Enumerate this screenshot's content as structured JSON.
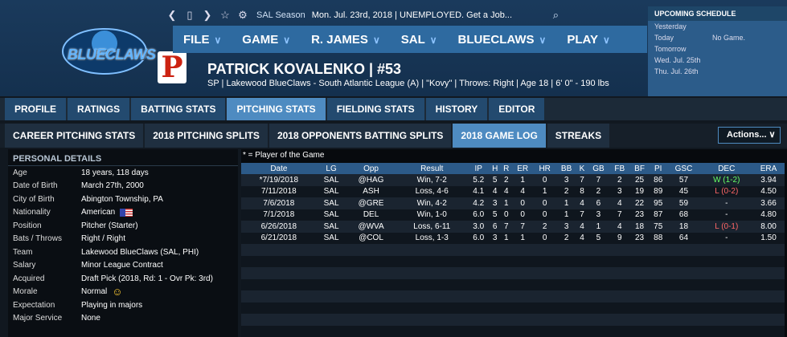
{
  "topbar": {
    "season": "SAL Season",
    "status": "Mon. Jul. 23rd, 2018  |  UNEMPLOYED. Get a Job..."
  },
  "logo": {
    "text": "BLUECLAWS",
    "phi": "P"
  },
  "nav": [
    {
      "label": "FILE"
    },
    {
      "label": "GAME"
    },
    {
      "label": "R. JAMES"
    },
    {
      "label": "SAL"
    },
    {
      "label": "BLUECLAWS"
    },
    {
      "label": "PLAY"
    }
  ],
  "player": {
    "name": "PATRICK KOVALENKO  |  #53",
    "info": "SP | Lakewood BlueClaws - South Atlantic League (A)  |  \"Kovy\"  |  Throws: Right  |  Age 18  |  6' 0\" - 190 lbs"
  },
  "schedule": {
    "title": "UPCOMING SCHEDULE",
    "rows": [
      {
        "d": "Yesterday",
        "v": ""
      },
      {
        "d": "Today",
        "v": "No Game."
      },
      {
        "d": "Tomorrow",
        "v": ""
      },
      {
        "d": "Wed. Jul. 25th",
        "v": ""
      },
      {
        "d": "Thu. Jul. 26th",
        "v": ""
      }
    ]
  },
  "tabs1": [
    "PROFILE",
    "RATINGS",
    "BATTING STATS",
    "PITCHING STATS",
    "FIELDING STATS",
    "HISTORY",
    "EDITOR"
  ],
  "tabs2": [
    "CAREER PITCHING STATS",
    "2018 PITCHING SPLITS",
    "2018 OPPONENTS BATTING SPLITS",
    "2018 GAME LOG",
    "STREAKS"
  ],
  "actions": "Actions...   ∨",
  "personal": {
    "title": "PERSONAL DETAILS",
    "rows": [
      {
        "k": "Age",
        "v": "18 years, 118 days"
      },
      {
        "k": "Date of Birth",
        "v": "March 27th, 2000"
      },
      {
        "k": "City of Birth",
        "v": "Abington Township, PA"
      },
      {
        "k": "Nationality",
        "v": "American"
      },
      {
        "k": "Position",
        "v": "Pitcher (Starter)"
      },
      {
        "k": "Bats / Throws",
        "v": "Right / Right"
      },
      {
        "k": "Team",
        "v": "Lakewood BlueClaws (SAL, PHI)"
      },
      {
        "k": "Salary",
        "v": "Minor League Contract"
      },
      {
        "k": "Acquired",
        "v": "Draft Pick (2018, Rd: 1 - Ovr Pk: 3rd)"
      },
      {
        "k": "Morale",
        "v": "Normal"
      },
      {
        "k": "Expectation",
        "v": "Playing in majors"
      },
      {
        "k": "Major Service",
        "v": "None"
      }
    ]
  },
  "gamelog": {
    "note": "* = Player of the Game",
    "headers": [
      "Date",
      "LG",
      "Opp",
      "Result",
      "IP",
      "H",
      "R",
      "ER",
      "HR",
      "BB",
      "K",
      "GB",
      "FB",
      "BF",
      "PI",
      "GSC",
      "DEC",
      "ERA"
    ],
    "rows": [
      [
        "*7/19/2018",
        "SAL",
        "@HAG",
        "Win, 7-2",
        "5.2",
        "5",
        "2",
        "1",
        "0",
        "3",
        "7",
        "7",
        "2",
        "25",
        "86",
        "57",
        "W (1-2)",
        "3.94"
      ],
      [
        "7/11/2018",
        "SAL",
        "ASH",
        "Loss, 4-6",
        "4.1",
        "4",
        "4",
        "4",
        "1",
        "2",
        "8",
        "2",
        "3",
        "19",
        "89",
        "45",
        "L (0-2)",
        "4.50"
      ],
      [
        "7/6/2018",
        "SAL",
        "@GRE",
        "Win, 4-2",
        "4.2",
        "3",
        "1",
        "0",
        "0",
        "1",
        "4",
        "6",
        "4",
        "22",
        "95",
        "59",
        "-",
        "3.66"
      ],
      [
        "7/1/2018",
        "SAL",
        "DEL",
        "Win, 1-0",
        "6.0",
        "5",
        "0",
        "0",
        "0",
        "1",
        "7",
        "3",
        "7",
        "23",
        "87",
        "68",
        "-",
        "4.80"
      ],
      [
        "6/26/2018",
        "SAL",
        "@WVA",
        "Loss, 6-11",
        "3.0",
        "6",
        "7",
        "7",
        "2",
        "3",
        "4",
        "1",
        "4",
        "18",
        "75",
        "18",
        "L (0-1)",
        "8.00"
      ],
      [
        "6/21/2018",
        "SAL",
        "@COL",
        "Loss, 1-3",
        "6.0",
        "3",
        "1",
        "1",
        "0",
        "2",
        "4",
        "5",
        "9",
        "23",
        "88",
        "64",
        "-",
        "1.50"
      ]
    ]
  }
}
